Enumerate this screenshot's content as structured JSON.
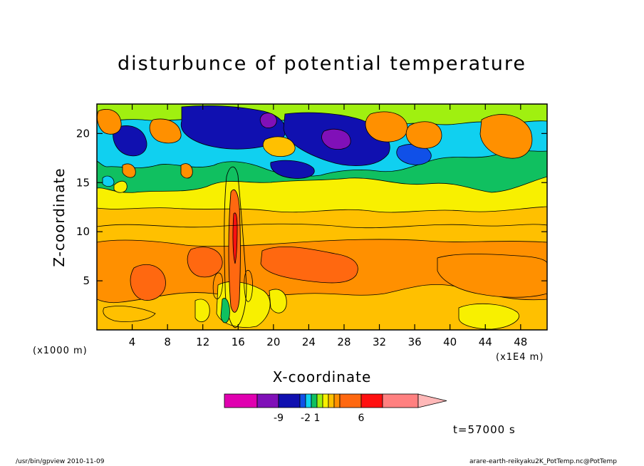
{
  "chart_data": {
    "type": "heatmap",
    "title": "disturbunce of potential temperature",
    "xlabel": "X-coordinate",
    "ylabel": "Z-coordinate",
    "x_unit_label": "(x1E4 m)",
    "y_unit_label": "(x1000 m)",
    "x_ticks": [
      "4",
      "8",
      "12",
      "16",
      "20",
      "24",
      "28",
      "32",
      "36",
      "40",
      "44",
      "48"
    ],
    "y_ticks": [
      "5",
      "10",
      "15",
      "20"
    ],
    "xlim": [
      0,
      51
    ],
    "ylim": [
      0,
      23
    ],
    "colorbar": {
      "colors": [
        "#e000b0",
        "#8010b8",
        "#1010b0",
        "#1050e8",
        "#10d0f0",
        "#10c060",
        "#a0f010",
        "#f8f000",
        "#ffc000",
        "#ff9000",
        "#ff6810",
        "#ff1010",
        "#ff8080",
        "#ffb8b8"
      ],
      "labels": [
        "-9",
        "-2",
        "1",
        "6"
      ]
    },
    "annotations": [
      "t=57000 s"
    ]
  },
  "footer": {
    "left": "/usr/bin/gpview   2010-11-09",
    "right": "arare-earth-reikyaku2K_PotTemp.nc@PotTemp"
  }
}
